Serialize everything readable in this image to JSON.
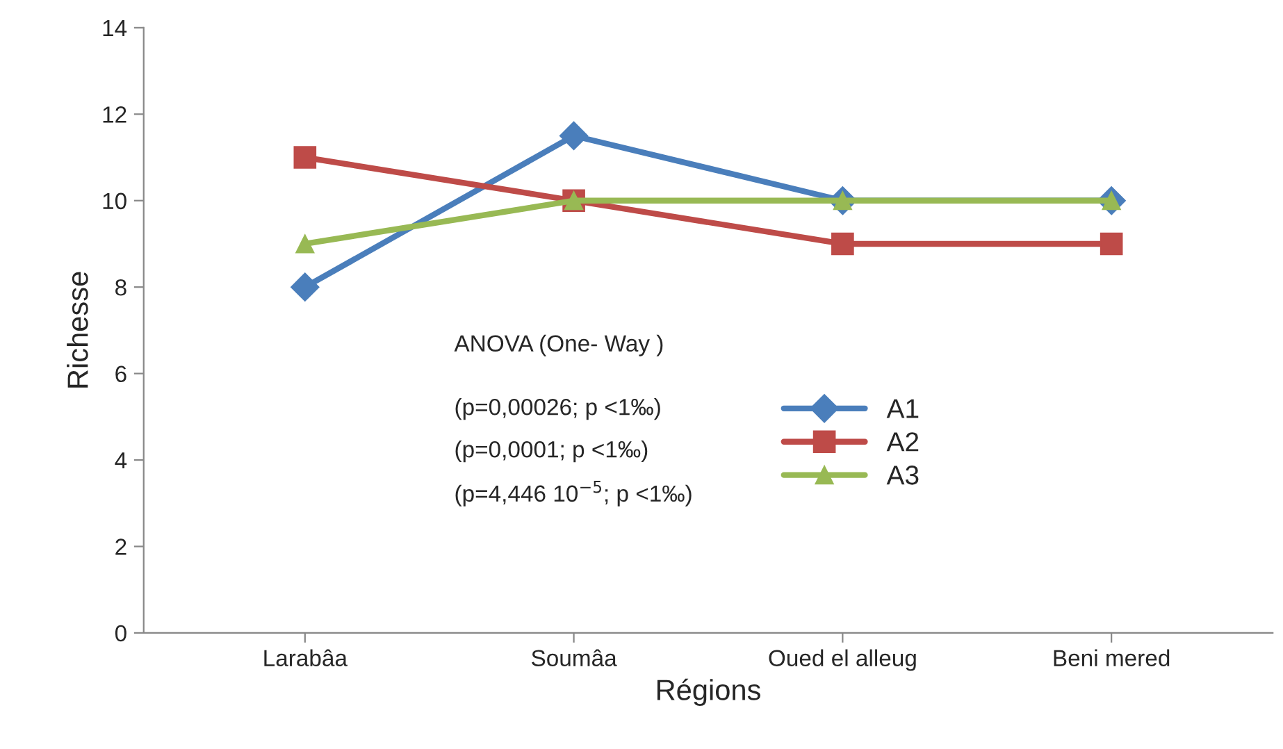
{
  "chart_data": {
    "type": "line",
    "xlabel": "Régions",
    "ylabel": "Richesse",
    "categories": [
      "Larabâa",
      "Soumâa",
      "Oued el alleug",
      "Beni mered"
    ],
    "series": [
      {
        "name": "A1",
        "color": "#4a7ebb",
        "marker": "diamond",
        "values": [
          8,
          11.5,
          10,
          10
        ]
      },
      {
        "name": "A2",
        "color": "#be4b48",
        "marker": "square",
        "values": [
          11,
          10,
          9,
          9
        ]
      },
      {
        "name": "A3",
        "color": "#98b954",
        "marker": "triangle",
        "values": [
          9,
          10,
          10,
          10
        ]
      }
    ],
    "ylim": [
      0,
      14
    ],
    "yticks": [
      0,
      2,
      4,
      6,
      8,
      10,
      12,
      14
    ],
    "grid": false,
    "legend": "center",
    "annotations": [
      "ANOVA (One- Way )",
      "(p=0,00026; p <1‰)",
      "(p=0,0001; p <1‰)",
      "(p=4,446 10$^{−5}$; p <1‰)"
    ]
  }
}
